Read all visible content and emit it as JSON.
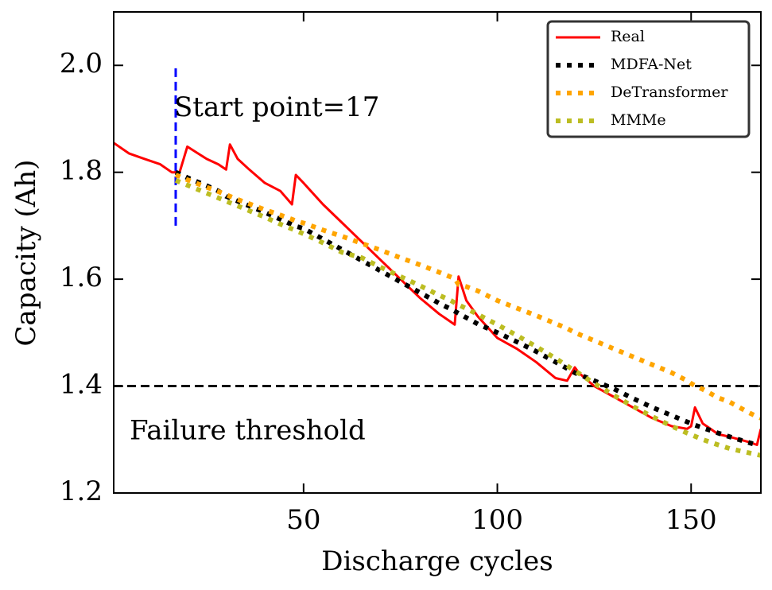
{
  "chart_data": {
    "type": "line",
    "xlabel": "Discharge cycles",
    "ylabel": "Capacity (Ah)",
    "xlim": [
      1,
      168
    ],
    "ylim": [
      1.2,
      2.1
    ],
    "xticks": [
      50,
      100,
      150
    ],
    "yticks": [
      1.2,
      1.4,
      1.6,
      1.8,
      {
        "value": 2,
        "label": "2.0"
      }
    ],
    "legend": "upper right",
    "x": [
      1,
      5,
      9,
      13,
      16,
      17,
      18,
      20,
      25,
      28,
      30,
      31,
      33,
      36,
      40,
      44,
      47,
      48,
      50,
      55,
      60,
      65,
      70,
      75,
      80,
      85,
      88,
      89,
      90,
      92,
      95,
      100,
      105,
      110,
      115,
      118,
      120,
      121,
      125,
      130,
      135,
      140,
      145,
      149,
      150,
      151,
      153,
      157,
      160,
      165,
      167,
      168
    ],
    "series": [
      {
        "name": "Real",
        "color": "#ff0000",
        "style": "solid",
        "values": [
          1.855,
          1.835,
          1.825,
          1.815,
          1.8,
          1.8,
          1.8,
          1.848,
          1.825,
          1.815,
          1.805,
          1.852,
          1.825,
          1.805,
          1.78,
          1.765,
          1.74,
          1.795,
          1.78,
          1.74,
          1.705,
          1.67,
          1.635,
          1.6,
          1.565,
          1.535,
          1.52,
          1.515,
          1.605,
          1.56,
          1.53,
          1.49,
          1.47,
          1.445,
          1.415,
          1.41,
          1.435,
          1.425,
          1.4,
          1.38,
          1.36,
          1.34,
          1.325,
          1.32,
          1.325,
          1.36,
          1.33,
          1.31,
          1.305,
          1.295,
          1.29,
          1.32
        ]
      },
      {
        "name": "MDFA-Net",
        "color": "#000000",
        "style": "dotted",
        "values": [
          null,
          null,
          null,
          null,
          null,
          1.8,
          1.797,
          1.79,
          1.775,
          1.765,
          1.755,
          1.752,
          1.746,
          1.737,
          1.725,
          1.712,
          1.702,
          1.699,
          1.695,
          1.675,
          1.655,
          1.635,
          1.615,
          1.595,
          1.575,
          1.555,
          1.544,
          1.54,
          1.536,
          1.528,
          1.516,
          1.5,
          1.483,
          1.465,
          1.445,
          1.433,
          1.425,
          1.422,
          1.41,
          1.395,
          1.377,
          1.36,
          1.345,
          1.333,
          1.33,
          1.327,
          1.322,
          1.312,
          1.305,
          1.294,
          1.29,
          null
        ]
      },
      {
        "name": "DeTransformer",
        "color": "#ffa500",
        "style": "dotted",
        "values": [
          null,
          null,
          null,
          null,
          null,
          1.795,
          1.792,
          1.786,
          1.772,
          1.764,
          1.758,
          1.755,
          1.749,
          1.741,
          1.73,
          1.72,
          1.712,
          1.709,
          1.705,
          1.692,
          1.68,
          1.667,
          1.654,
          1.64,
          1.627,
          1.613,
          1.604,
          1.601,
          1.59,
          1.586,
          1.578,
          1.56,
          1.546,
          1.532,
          1.517,
          1.508,
          1.5,
          1.497,
          1.485,
          1.47,
          1.455,
          1.44,
          1.425,
          1.41,
          1.405,
          1.401,
          1.394,
          1.378,
          1.37,
          1.35,
          1.343,
          1.34
        ]
      },
      {
        "name": "MMMe",
        "color": "#bcbd22",
        "style": "dotted",
        "values": [
          null,
          null,
          null,
          null,
          null,
          1.785,
          1.782,
          1.776,
          1.761,
          1.752,
          1.746,
          1.743,
          1.737,
          1.728,
          1.716,
          1.703,
          1.694,
          1.691,
          1.685,
          1.668,
          1.65,
          1.64,
          1.622,
          1.605,
          1.588,
          1.57,
          1.56,
          1.556,
          1.552,
          1.545,
          1.534,
          1.515,
          1.495,
          1.474,
          1.452,
          1.438,
          1.428,
          1.424,
          1.405,
          1.383,
          1.362,
          1.343,
          1.325,
          1.312,
          1.309,
          1.306,
          1.3,
          1.29,
          1.283,
          1.275,
          1.272,
          1.27
        ]
      }
    ],
    "threshold": {
      "value": 1.4,
      "label": "Failure threshold",
      "color": "#000000"
    },
    "start": {
      "x": 17,
      "ylim": [
        1.7,
        2.0
      ],
      "label": "Start point=17",
      "color": "#0000ff"
    }
  }
}
